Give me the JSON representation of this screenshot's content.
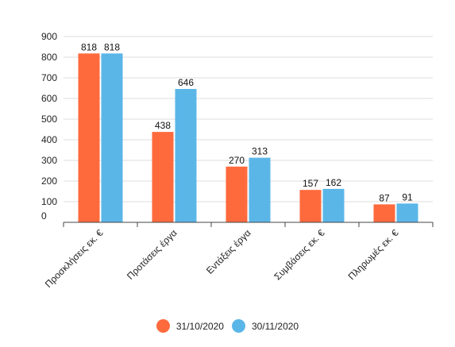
{
  "chart_data": {
    "type": "bar",
    "categories": [
      "Προσκλήσεις εκ. €",
      "Προτάσεις έργα",
      "Εντάξεις έργα",
      "Συμβάσεις εκ. €",
      "Πληρωμές εκ. €"
    ],
    "series": [
      {
        "name": "31/10/2020",
        "color": "#ff6a3d",
        "values": [
          818,
          438,
          270,
          157,
          87
        ]
      },
      {
        "name": "30/11/2020",
        "color": "#5bb6e8",
        "values": [
          818,
          646,
          313,
          162,
          91
        ]
      }
    ],
    "ylim": [
      0,
      900
    ],
    "yticks": [
      "0",
      "100",
      "200",
      "300",
      "400",
      "500",
      "600",
      "700",
      "800",
      "900"
    ],
    "grid": true,
    "legend_position": "bottom"
  }
}
